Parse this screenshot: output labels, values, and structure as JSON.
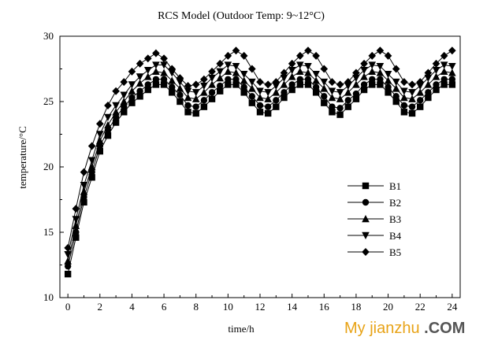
{
  "chart_data": {
    "type": "line",
    "title": "RCS Model (Outdoor Temp: 9~12°C)",
    "xlabel": "time/h",
    "ylabel": "temperature/°C",
    "xlim": [
      -0.5,
      24.5
    ],
    "ylim": [
      10,
      30
    ],
    "x_ticks": [
      0,
      2,
      4,
      6,
      8,
      10,
      12,
      14,
      16,
      18,
      20,
      22,
      24
    ],
    "y_ticks": [
      10,
      15,
      20,
      25,
      30
    ],
    "grid": false,
    "legend_position": "lower-right",
    "x": [
      0,
      0.5,
      1,
      1.5,
      2,
      2.5,
      3,
      3.5,
      4,
      4.5,
      5,
      5.5,
      6,
      6.5,
      7,
      7.5,
      8,
      8.5,
      9,
      9.5,
      10,
      10.5,
      11,
      11.5,
      12,
      12.5,
      13,
      13.5,
      14,
      14.5,
      15,
      15.5,
      16,
      16.5,
      17,
      17.5,
      18,
      18.5,
      19,
      19.5,
      20,
      20.5,
      21,
      21.5,
      22,
      22.5,
      23,
      23.5,
      24
    ],
    "series": [
      {
        "name": "B1",
        "marker": "square",
        "values": [
          11.8,
          14.6,
          17.3,
          19.2,
          21.2,
          22.4,
          23.4,
          24.2,
          24.9,
          25.4,
          25.9,
          26.3,
          26.3,
          25.7,
          25.0,
          24.2,
          24.1,
          24.6,
          25.2,
          25.8,
          26.3,
          26.3,
          25.7,
          24.9,
          24.2,
          24.1,
          24.6,
          25.3,
          25.9,
          26.3,
          26.3,
          25.7,
          24.9,
          24.2,
          24.0,
          24.6,
          25.2,
          25.9,
          26.3,
          26.3,
          25.7,
          25.0,
          24.2,
          24.1,
          24.6,
          25.3,
          25.9,
          26.3,
          26.3
        ]
      },
      {
        "name": "B2",
        "marker": "circle",
        "values": [
          12.4,
          15.0,
          17.7,
          19.6,
          21.6,
          22.8,
          23.8,
          24.6,
          25.3,
          25.8,
          26.3,
          26.7,
          26.7,
          26.1,
          25.5,
          24.7,
          24.6,
          25.1,
          25.7,
          26.2,
          26.7,
          26.7,
          26.1,
          25.4,
          24.7,
          24.6,
          25.1,
          25.7,
          26.3,
          26.7,
          26.7,
          26.1,
          25.4,
          24.6,
          24.5,
          25.1,
          25.6,
          26.3,
          26.7,
          26.7,
          26.1,
          25.4,
          24.7,
          24.6,
          25.1,
          25.7,
          26.3,
          26.7,
          26.7
        ]
      },
      {
        "name": "B3",
        "marker": "triangle-up",
        "values": [
          12.8,
          15.5,
          18.1,
          20.0,
          22.0,
          23.2,
          24.2,
          25.0,
          25.8,
          26.4,
          26.9,
          27.3,
          27.2,
          26.6,
          26.0,
          25.3,
          25.2,
          25.7,
          26.3,
          26.8,
          27.3,
          27.2,
          26.6,
          26.0,
          25.3,
          25.2,
          25.7,
          26.3,
          26.9,
          27.3,
          27.2,
          26.6,
          26.0,
          25.3,
          25.2,
          25.7,
          26.3,
          26.9,
          27.3,
          27.2,
          26.6,
          26.0,
          25.3,
          25.2,
          25.7,
          26.3,
          26.9,
          27.3,
          27.2
        ]
      },
      {
        "name": "B4",
        "marker": "triangle-down",
        "values": [
          13.3,
          16.0,
          18.6,
          20.5,
          22.5,
          23.8,
          24.7,
          25.5,
          26.3,
          26.9,
          27.4,
          27.8,
          27.8,
          27.2,
          26.5,
          25.8,
          25.7,
          26.2,
          26.8,
          27.3,
          27.8,
          27.7,
          27.1,
          26.5,
          25.8,
          25.7,
          26.2,
          26.8,
          27.4,
          27.8,
          27.7,
          27.1,
          26.5,
          25.8,
          25.7,
          26.2,
          26.8,
          27.4,
          27.8,
          27.7,
          27.1,
          26.5,
          25.8,
          25.7,
          26.2,
          26.8,
          27.4,
          27.8,
          27.7
        ]
      },
      {
        "name": "B5",
        "marker": "diamond",
        "values": [
          13.8,
          16.8,
          19.6,
          21.6,
          23.3,
          24.7,
          25.8,
          26.5,
          27.3,
          27.9,
          28.3,
          28.7,
          28.3,
          27.5,
          26.8,
          26.2,
          26.3,
          26.7,
          27.3,
          27.9,
          28.5,
          28.9,
          28.5,
          27.5,
          26.5,
          26.3,
          26.5,
          27.2,
          27.9,
          28.5,
          28.9,
          28.5,
          27.5,
          26.5,
          26.3,
          26.5,
          27.2,
          27.9,
          28.5,
          28.9,
          28.5,
          27.5,
          26.5,
          26.3,
          26.5,
          27.2,
          27.9,
          28.5,
          28.9
        ]
      }
    ]
  },
  "watermark": {
    "main": "My jianzhu",
    "suffix": " .COM",
    "color": "#e8a317"
  }
}
